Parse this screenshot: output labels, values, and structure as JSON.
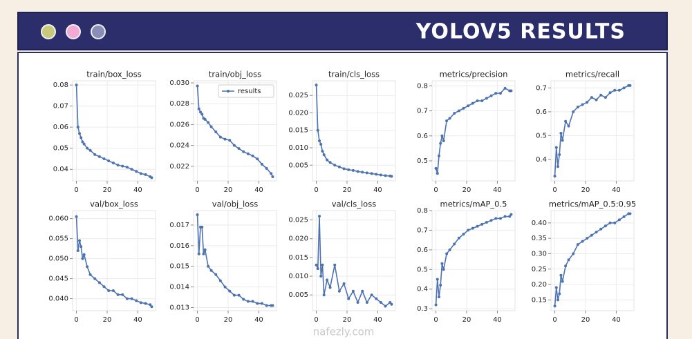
{
  "header": {
    "title": "YOLOV5 RESULTS"
  },
  "watermark": "nafezly.com",
  "chart_data": [
    {
      "type": "line",
      "title": "train/box_loss",
      "color": "#4c72b0",
      "grid": true,
      "x": [
        0,
        1,
        2,
        3,
        4,
        5,
        7,
        9,
        12,
        15,
        18,
        21,
        24,
        27,
        30,
        33,
        36,
        39,
        42,
        45,
        48,
        49
      ],
      "values": [
        0.08,
        0.06,
        0.057,
        0.055,
        0.053,
        0.052,
        0.05,
        0.049,
        0.047,
        0.046,
        0.045,
        0.044,
        0.043,
        0.042,
        0.0415,
        0.041,
        0.04,
        0.039,
        0.038,
        0.0375,
        0.0365,
        0.036
      ],
      "xlim": [
        -2.5,
        51.5
      ],
      "xticks": [
        0,
        20,
        40
      ],
      "ylim": [
        0.0345,
        0.082
      ],
      "yticks": [
        0.04,
        0.05,
        0.06,
        0.07,
        0.08
      ]
    },
    {
      "type": "line",
      "title": "train/obj_loss",
      "color": "#4c72b0",
      "grid": true,
      "legend": "results",
      "x": [
        0,
        1,
        2,
        3,
        4,
        5,
        7,
        9,
        12,
        15,
        18,
        21,
        24,
        27,
        30,
        33,
        36,
        39,
        42,
        45,
        48,
        49
      ],
      "values": [
        0.0297,
        0.0275,
        0.0272,
        0.027,
        0.0266,
        0.0265,
        0.0262,
        0.0258,
        0.0253,
        0.0248,
        0.0246,
        0.0245,
        0.024,
        0.0237,
        0.0234,
        0.0232,
        0.023,
        0.0227,
        0.0222,
        0.0218,
        0.0213,
        0.021
      ],
      "xlim": [
        -2.5,
        51.5
      ],
      "xticks": [
        0,
        20,
        40
      ],
      "ylim": [
        0.0206,
        0.0302
      ],
      "yticks": [
        0.022,
        0.024,
        0.026,
        0.028,
        {
          "value": 0.03,
          "label": "0.030"
        }
      ]
    },
    {
      "type": "line",
      "title": "train/cls_loss",
      "color": "#4c72b0",
      "grid": true,
      "x": [
        0,
        1,
        2,
        3,
        4,
        5,
        7,
        9,
        12,
        15,
        18,
        21,
        24,
        27,
        30,
        33,
        36,
        39,
        42,
        45,
        48,
        49
      ],
      "values": [
        0.028,
        0.015,
        0.012,
        0.011,
        0.009,
        0.008,
        0.0065,
        0.0058,
        0.005,
        0.0045,
        0.004,
        0.0037,
        0.0035,
        0.0032,
        0.003,
        0.0028,
        0.0026,
        0.0024,
        0.0022,
        0.002,
        0.0019,
        0.0018
      ],
      "xlim": [
        -2.5,
        51.5
      ],
      "xticks": [
        0,
        20,
        40
      ],
      "ylim": [
        0.0005,
        0.0292
      ],
      "yticks": [
        0.005,
        {
          "value": 0.01,
          "label": "0.010"
        },
        0.015,
        {
          "value": 0.02,
          "label": "0.020"
        },
        0.025
      ]
    },
    {
      "type": "line",
      "title": "metrics/precision",
      "color": "#4c72b0",
      "grid": true,
      "x": [
        0,
        1,
        2,
        3,
        4,
        5,
        7,
        9,
        12,
        15,
        18,
        21,
        24,
        27,
        30,
        33,
        36,
        39,
        42,
        45,
        48,
        49
      ],
      "values": [
        0.47,
        0.45,
        0.52,
        0.57,
        0.6,
        0.58,
        0.66,
        0.67,
        0.69,
        0.7,
        0.71,
        0.72,
        0.73,
        0.74,
        0.74,
        0.75,
        0.76,
        0.77,
        0.77,
        0.79,
        0.78,
        0.78
      ],
      "xlim": [
        -2.5,
        51.5
      ],
      "xticks": [
        0,
        20,
        40
      ],
      "ylim": [
        0.42,
        0.82
      ],
      "yticks": [
        0.5,
        0.6,
        0.7,
        0.8
      ]
    },
    {
      "type": "line",
      "title": "metrics/recall",
      "color": "#4c72b0",
      "grid": true,
      "x": [
        0,
        1,
        2,
        3,
        4,
        5,
        7,
        9,
        12,
        15,
        18,
        21,
        24,
        27,
        30,
        33,
        36,
        39,
        42,
        45,
        48,
        49
      ],
      "values": [
        0.33,
        0.45,
        0.37,
        0.42,
        0.51,
        0.48,
        0.56,
        0.54,
        0.6,
        0.62,
        0.63,
        0.64,
        0.66,
        0.65,
        0.67,
        0.66,
        0.68,
        0.69,
        0.69,
        0.7,
        0.71,
        0.71
      ],
      "xlim": [
        -2.5,
        51.5
      ],
      "xticks": [
        0,
        20,
        40
      ],
      "ylim": [
        0.31,
        0.73
      ],
      "yticks": [
        0.4,
        0.5,
        0.6,
        0.7
      ]
    },
    {
      "type": "line",
      "title": "val/box_loss",
      "color": "#4c72b0",
      "grid": true,
      "x": [
        0,
        1,
        2,
        3,
        4,
        5,
        7,
        9,
        12,
        15,
        18,
        21,
        24,
        27,
        30,
        33,
        36,
        39,
        42,
        45,
        48,
        49
      ],
      "values": [
        0.0605,
        0.052,
        0.0545,
        0.053,
        0.05,
        0.051,
        0.048,
        0.046,
        0.045,
        0.044,
        0.043,
        0.042,
        0.042,
        0.041,
        0.041,
        0.04,
        0.04,
        0.0395,
        0.039,
        0.0388,
        0.0385,
        0.038
      ],
      "xlim": [
        -2.5,
        51.5
      ],
      "xticks": [
        0,
        20,
        40
      ],
      "ylim": [
        0.037,
        0.062
      ],
      "yticks": [
        {
          "value": 0.04,
          "label": "0.040"
        },
        0.045,
        {
          "value": 0.05,
          "label": "0.050"
        },
        0.055,
        {
          "value": 0.06,
          "label": "0.060"
        }
      ]
    },
    {
      "type": "line",
      "title": "val/obj_loss",
      "color": "#4c72b0",
      "grid": true,
      "x": [
        0,
        1,
        2,
        3,
        4,
        5,
        7,
        9,
        12,
        15,
        18,
        21,
        24,
        27,
        30,
        33,
        36,
        39,
        42,
        45,
        48,
        49
      ],
      "values": [
        0.0175,
        0.0156,
        0.0169,
        0.0169,
        0.0156,
        0.0158,
        0.015,
        0.0148,
        0.0146,
        0.0143,
        0.014,
        0.0138,
        0.0136,
        0.0136,
        0.0134,
        0.0133,
        0.0133,
        0.0132,
        0.0132,
        0.0131,
        0.0131,
        0.0131
      ],
      "xlim": [
        -2.5,
        51.5
      ],
      "xticks": [
        0,
        20,
        40
      ],
      "ylim": [
        0.01285,
        0.0177
      ],
      "yticks": [
        0.013,
        0.014,
        0.015,
        0.016,
        0.017
      ]
    },
    {
      "type": "line",
      "title": "val/cls_loss",
      "color": "#4c72b0",
      "grid": true,
      "x": [
        0,
        1,
        2,
        3,
        4,
        5,
        7,
        9,
        12,
        15,
        18,
        21,
        24,
        27,
        30,
        33,
        36,
        39,
        42,
        45,
        48,
        49
      ],
      "values": [
        0.013,
        0.012,
        0.026,
        0.01,
        0.013,
        0.005,
        0.009,
        0.007,
        0.013,
        0.006,
        0.008,
        0.004,
        0.006,
        0.003,
        0.006,
        0.003,
        0.005,
        0.004,
        0.003,
        0.002,
        0.003,
        0.0025
      ],
      "xlim": [
        -2.5,
        51.5
      ],
      "xticks": [
        0,
        20,
        40
      ],
      "ylim": [
        0.0008,
        0.0275
      ],
      "yticks": [
        0.005,
        {
          "value": 0.01,
          "label": "0.010"
        },
        0.015,
        {
          "value": 0.02,
          "label": "0.020"
        },
        0.025
      ]
    },
    {
      "type": "line",
      "title": "metrics/mAP_0.5",
      "color": "#4c72b0",
      "grid": true,
      "x": [
        0,
        1,
        2,
        3,
        4,
        5,
        7,
        9,
        12,
        15,
        18,
        21,
        24,
        27,
        30,
        33,
        36,
        39,
        42,
        45,
        48,
        49
      ],
      "values": [
        0.32,
        0.45,
        0.36,
        0.42,
        0.53,
        0.5,
        0.58,
        0.6,
        0.63,
        0.66,
        0.68,
        0.7,
        0.71,
        0.72,
        0.73,
        0.74,
        0.75,
        0.76,
        0.76,
        0.77,
        0.77,
        0.78
      ],
      "xlim": [
        -2.5,
        51.5
      ],
      "xticks": [
        0,
        20,
        40
      ],
      "ylim": [
        0.29,
        0.8
      ],
      "yticks": [
        0.3,
        0.4,
        0.5,
        0.6,
        0.7,
        0.8
      ]
    },
    {
      "type": "line",
      "title": "metrics/mAP_0.5:0.95",
      "color": "#4c72b0",
      "grid": true,
      "x": [
        0,
        1,
        2,
        3,
        4,
        5,
        7,
        9,
        12,
        15,
        18,
        21,
        24,
        27,
        30,
        33,
        36,
        39,
        42,
        45,
        48,
        49
      ],
      "values": [
        0.13,
        0.19,
        0.15,
        0.17,
        0.23,
        0.21,
        0.26,
        0.28,
        0.3,
        0.33,
        0.34,
        0.35,
        0.36,
        0.37,
        0.38,
        0.39,
        0.4,
        0.4,
        0.41,
        0.42,
        0.43,
        0.43
      ],
      "xlim": [
        -2.5,
        51.5
      ],
      "xticks": [
        0,
        20,
        40
      ],
      "ylim": [
        0.115,
        0.44
      ],
      "yticks": [
        0.15,
        {
          "value": 0.2,
          "label": "0.20"
        },
        0.25,
        {
          "value": 0.3,
          "label": "0.30"
        },
        0.35,
        {
          "value": 0.4,
          "label": "0.40"
        }
      ]
    }
  ]
}
